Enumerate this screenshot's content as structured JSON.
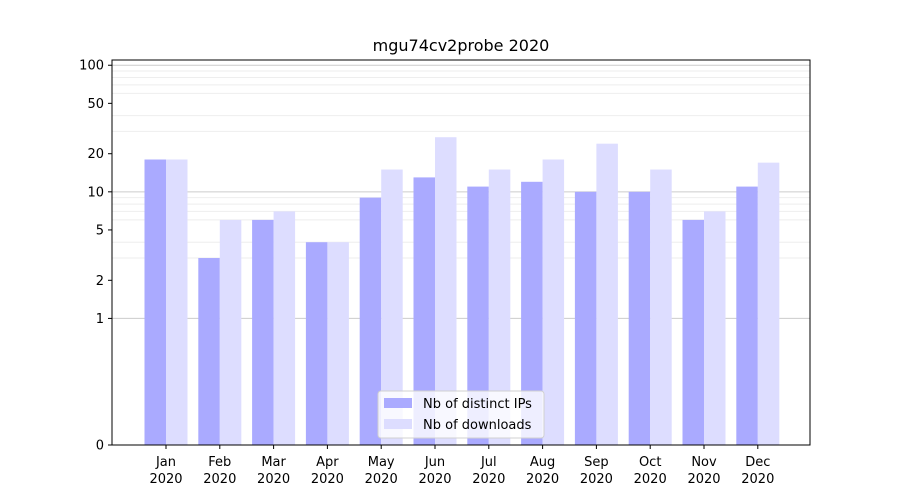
{
  "chart_data": {
    "type": "bar",
    "title": "mgu74cv2probe 2020",
    "xlabel": "",
    "ylabel": "",
    "yscale": "symlog",
    "ylim": [
      0,
      110
    ],
    "yticks": [
      0,
      1,
      2,
      5,
      10,
      20,
      50,
      100
    ],
    "categories": [
      [
        "Jan",
        "2020"
      ],
      [
        "Feb",
        "2020"
      ],
      [
        "Mar",
        "2020"
      ],
      [
        "Apr",
        "2020"
      ],
      [
        "May",
        "2020"
      ],
      [
        "Jun",
        "2020"
      ],
      [
        "Jul",
        "2020"
      ],
      [
        "Aug",
        "2020"
      ],
      [
        "Sep",
        "2020"
      ],
      [
        "Oct",
        "2020"
      ],
      [
        "Nov",
        "2020"
      ],
      [
        "Dec",
        "2020"
      ]
    ],
    "series": [
      {
        "name": "Nb of distinct IPs",
        "color": "#aaaaff",
        "values": [
          18,
          3,
          6,
          4,
          9,
          13,
          11,
          12,
          10,
          10,
          6,
          11
        ]
      },
      {
        "name": "Nb of downloads",
        "color": "#ddddff",
        "values": [
          18,
          6,
          7,
          4,
          15,
          27,
          15,
          18,
          24,
          15,
          7,
          17
        ]
      }
    ],
    "legend": "bottom-center",
    "grid": "y"
  }
}
